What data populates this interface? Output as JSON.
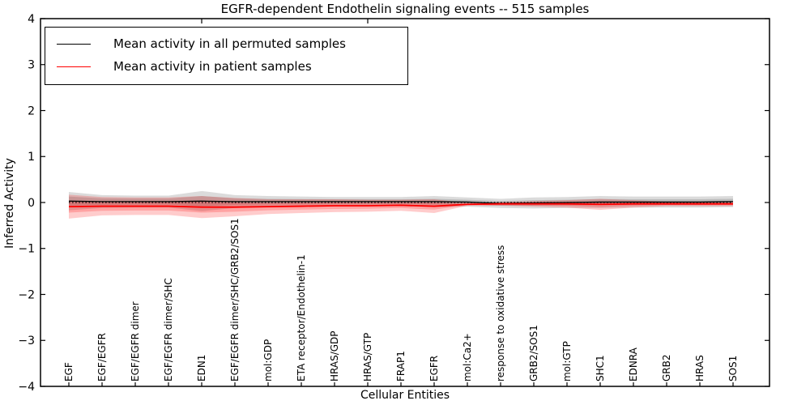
{
  "figure": {
    "title": "EGFR-dependent Endothelin signaling events -- 515 samples",
    "xlabel": "Cellular Entities",
    "ylabel": "Inferred Activity"
  },
  "legend": {
    "position": "upper left",
    "items": [
      {
        "label": "Mean activity in all permuted samples",
        "color": "#000000"
      },
      {
        "label": "Mean activity in patient samples",
        "color": "#ff0000"
      }
    ]
  },
  "chart_data": {
    "type": "line",
    "title": "EGFR-dependent Endothelin signaling events -- 515 samples",
    "xlabel": "Cellular Entities",
    "ylabel": "Inferred Activity",
    "ylim": [
      -4,
      4
    ],
    "yticks": [
      -4,
      -3,
      -2,
      -1,
      0,
      1,
      2,
      3,
      4
    ],
    "ytick_labels": [
      "−4",
      "−3",
      "−2",
      "−1",
      "0",
      "1",
      "2",
      "3",
      "4"
    ],
    "grid": false,
    "legend_position": "upper left",
    "zero_line_style": "dotted",
    "top_ticks_at": [
      4,
      9
    ],
    "categories": [
      "EGF",
      "EGF/EGFR",
      "EGF/EGFR dimer",
      "EGF/EGFR dimer/SHC",
      "EDN1",
      "EGF/EGFR dimer/SHC/GRB2/SOS1",
      "mol:GDP",
      "ETA receptor/Endothelin-1",
      "HRAS/GDP",
      "HRAS/GTP",
      "FRAP1",
      "EGFR",
      "mol:Ca2+",
      "response to oxidative stress",
      "GRB2/SOS1",
      "mol:GTP",
      "SHC1",
      "EDNRA",
      "GRB2",
      "HRAS",
      "SOS1"
    ],
    "series": [
      {
        "name": "Mean activity in all permuted samples",
        "color": "#000000",
        "band_color": "rgba(0,0,0,0.14)",
        "line_width": 1.3,
        "values": [
          0.03,
          0.02,
          0.02,
          0.02,
          0.03,
          0.02,
          0.02,
          0.02,
          0.02,
          0.02,
          0.02,
          0.02,
          0.01,
          -0.02,
          -0.01,
          0,
          0.01,
          0.01,
          0.01,
          0.01,
          0.02
        ],
        "band_std": [
          0.2,
          0.14,
          0.13,
          0.13,
          0.22,
          0.14,
          0.12,
          0.11,
          0.1,
          0.1,
          0.1,
          0.12,
          0.1,
          0.1,
          0.12,
          0.12,
          0.13,
          0.12,
          0.12,
          0.12,
          0.12
        ]
      },
      {
        "name": "Mean activity in patient samples",
        "color": "#ff0000",
        "band_color": "rgba(255,0,0,0.2)",
        "line_width": 1.8,
        "values": [
          -0.09,
          -0.08,
          -0.08,
          -0.08,
          -0.1,
          -0.1,
          -0.09,
          -0.08,
          -0.07,
          -0.07,
          -0.06,
          -0.08,
          -0.04,
          -0.03,
          -0.03,
          -0.03,
          -0.04,
          -0.03,
          -0.03,
          -0.03,
          -0.03
        ],
        "band_std": [
          0.26,
          0.2,
          0.19,
          0.19,
          0.24,
          0.2,
          0.16,
          0.15,
          0.14,
          0.13,
          0.12,
          0.15,
          0.03,
          0.04,
          0.06,
          0.08,
          0.12,
          0.08,
          0.05,
          0.05,
          0.05
        ]
      }
    ]
  }
}
